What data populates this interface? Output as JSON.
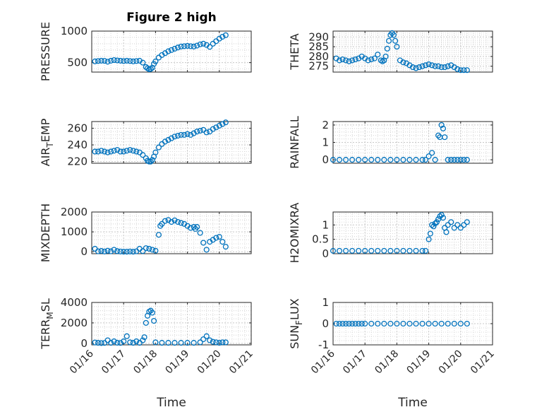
{
  "figure": {
    "title": "Figure 2 high",
    "xlabel": "Time",
    "x_tick_labels": [
      "01/16",
      "01/17",
      "01/18",
      "01/19",
      "01/20",
      "01/21"
    ],
    "marker_color": "#0072BD"
  },
  "chart_data": [
    {
      "type": "scatter",
      "name": "pressure",
      "title": "Figure 2 high",
      "ylabel": "PRESSURE",
      "ylim": [
        350,
        1000
      ],
      "yticks": [
        500,
        1000
      ],
      "xlim": [
        "01/16",
        "01/21"
      ],
      "grid": true,
      "x": [
        16.1,
        16.2,
        16.3,
        16.4,
        16.5,
        16.6,
        16.7,
        16.8,
        16.9,
        17.0,
        17.1,
        17.2,
        17.3,
        17.4,
        17.5,
        17.6,
        17.7,
        17.75,
        17.8,
        17.85,
        17.9,
        17.95,
        18.0,
        18.1,
        18.2,
        18.3,
        18.4,
        18.5,
        18.6,
        18.7,
        18.8,
        18.9,
        19.0,
        19.1,
        19.2,
        19.3,
        19.4,
        19.5,
        19.6,
        19.7,
        19.8,
        19.9,
        20.0,
        20.1,
        20.2
      ],
      "y": [
        520,
        525,
        530,
        528,
        515,
        530,
        540,
        535,
        530,
        525,
        530,
        525,
        520,
        525,
        530,
        500,
        430,
        410,
        395,
        400,
        420,
        480,
        520,
        580,
        620,
        650,
        680,
        700,
        720,
        740,
        755,
        760,
        765,
        760,
        755,
        770,
        790,
        800,
        780,
        750,
        800,
        840,
        880,
        910,
        935
      ]
    },
    {
      "type": "scatter",
      "name": "theta",
      "ylabel": "THETA",
      "ylim": [
        272,
        293
      ],
      "yticks": [
        275,
        280,
        285,
        290
      ],
      "xlim": [
        "01/16",
        "01/21"
      ],
      "grid": true,
      "x": [
        16.1,
        16.2,
        16.3,
        16.4,
        16.5,
        16.6,
        16.7,
        16.8,
        16.9,
        17.0,
        17.1,
        17.2,
        17.3,
        17.4,
        17.5,
        17.55,
        17.6,
        17.65,
        17.7,
        17.75,
        17.8,
        17.85,
        17.9,
        17.95,
        18.0,
        18.1,
        18.2,
        18.3,
        18.4,
        18.5,
        18.6,
        18.7,
        18.8,
        18.9,
        19.0,
        19.1,
        19.2,
        19.3,
        19.4,
        19.5,
        19.6,
        19.7,
        19.8,
        19.9,
        20.0,
        20.1,
        20.2
      ],
      "y": [
        279,
        278,
        278.5,
        278,
        277.5,
        278,
        278.5,
        279,
        280,
        279,
        278,
        278.5,
        279,
        281,
        278,
        277.5,
        278,
        280,
        284,
        288,
        291,
        292,
        291,
        288,
        285,
        278,
        277,
        276.5,
        275.5,
        274.5,
        274,
        274.5,
        275,
        275.5,
        276,
        275.5,
        275,
        275,
        274.5,
        274.5,
        275,
        275.5,
        274.5,
        273.5,
        273,
        273,
        273
      ]
    },
    {
      "type": "scatter",
      "name": "air_temp",
      "ylabel": "AIR_TEMP",
      "ylim": [
        218,
        268
      ],
      "yticks": [
        220,
        240,
        260
      ],
      "xlim": [
        "01/16",
        "01/21"
      ],
      "grid": true,
      "x": [
        16.1,
        16.2,
        16.3,
        16.4,
        16.5,
        16.6,
        16.7,
        16.8,
        16.9,
        17.0,
        17.1,
        17.2,
        17.3,
        17.4,
        17.5,
        17.6,
        17.7,
        17.75,
        17.8,
        17.85,
        17.9,
        17.95,
        18.0,
        18.1,
        18.2,
        18.3,
        18.4,
        18.5,
        18.6,
        18.7,
        18.8,
        18.9,
        19.0,
        19.1,
        19.2,
        19.3,
        19.4,
        19.5,
        19.6,
        19.7,
        19.8,
        19.9,
        20.0,
        20.1,
        20.2
      ],
      "y": [
        232,
        232,
        233,
        232,
        231,
        232,
        233,
        234,
        232,
        232,
        233,
        234,
        233,
        232,
        231,
        228,
        224,
        221,
        220,
        220,
        222,
        226,
        231,
        237,
        241,
        244,
        246,
        248,
        250,
        251,
        252,
        252,
        253,
        252,
        254,
        256,
        257,
        258,
        255,
        256,
        259,
        261,
        263,
        265,
        267
      ]
    },
    {
      "type": "scatter",
      "name": "rainfall",
      "ylabel": "RAINFALL",
      "ylim": [
        -0.2,
        2.2
      ],
      "yticks": [
        0,
        1,
        2
      ],
      "xlim": [
        "01/16",
        "01/21"
      ],
      "grid": true,
      "x": [
        16.0,
        16.2,
        16.4,
        16.6,
        16.8,
        17.0,
        17.2,
        17.4,
        17.6,
        17.8,
        18.0,
        18.2,
        18.4,
        18.6,
        18.8,
        18.9,
        19.0,
        19.1,
        19.2,
        19.3,
        19.35,
        19.4,
        19.45,
        19.5,
        19.6,
        19.7,
        19.8,
        19.9,
        20.0,
        20.1,
        20.2
      ],
      "y": [
        0,
        0,
        0,
        0,
        0,
        0,
        0,
        0,
        0,
        0,
        0,
        0,
        0,
        0,
        0,
        0,
        0.2,
        0.4,
        0,
        1.4,
        1.3,
        2.0,
        1.8,
        1.3,
        0,
        0,
        0,
        0,
        0,
        0,
        0
      ]
    },
    {
      "type": "scatter",
      "name": "mixdepth",
      "ylabel": "MIXDEPTH",
      "ylim": [
        -100,
        2000
      ],
      "yticks": [
        0,
        1000,
        2000
      ],
      "xlim": [
        "01/16",
        "01/21"
      ],
      "grid": true,
      "x": [
        16.1,
        16.2,
        16.3,
        16.4,
        16.5,
        16.6,
        16.7,
        16.8,
        16.9,
        17.0,
        17.1,
        17.2,
        17.3,
        17.4,
        17.5,
        17.6,
        17.7,
        17.8,
        17.9,
        18.0,
        18.1,
        18.15,
        18.2,
        18.3,
        18.4,
        18.5,
        18.6,
        18.7,
        18.8,
        18.9,
        19.0,
        19.1,
        19.2,
        19.25,
        19.3,
        19.4,
        19.5,
        19.6,
        19.7,
        19.8,
        19.9,
        20.0,
        20.1,
        20.2
      ],
      "y": [
        150,
        20,
        40,
        10,
        50,
        20,
        100,
        30,
        10,
        0,
        0,
        10,
        0,
        20,
        150,
        30,
        180,
        150,
        100,
        50,
        850,
        1300,
        1400,
        1550,
        1600,
        1500,
        1580,
        1500,
        1450,
        1400,
        1300,
        1200,
        1250,
        1150,
        1250,
        950,
        450,
        100,
        500,
        600,
        700,
        750,
        500,
        250
      ]
    },
    {
      "type": "scatter",
      "name": "h2omixra",
      "ylabel": "H2OMIXRA",
      "ylim": [
        0,
        1.45
      ],
      "yticks": [
        0,
        0.5,
        1
      ],
      "xlim": [
        "01/16",
        "01/21"
      ],
      "grid": true,
      "x": [
        16.0,
        16.2,
        16.4,
        16.6,
        16.8,
        17.0,
        17.2,
        17.4,
        17.6,
        17.8,
        18.0,
        18.2,
        18.4,
        18.6,
        18.8,
        18.9,
        19.0,
        19.05,
        19.1,
        19.15,
        19.2,
        19.25,
        19.3,
        19.35,
        19.4,
        19.45,
        19.5,
        19.55,
        19.6,
        19.7,
        19.8,
        19.9,
        20.0,
        20.1,
        20.2
      ],
      "y": [
        0.1,
        0.1,
        0.1,
        0.1,
        0.1,
        0.1,
        0.1,
        0.1,
        0.1,
        0.1,
        0.1,
        0.1,
        0.1,
        0.1,
        0.1,
        0.1,
        0.5,
        0.7,
        1.0,
        0.95,
        1.05,
        1.1,
        1.2,
        1.3,
        1.35,
        1.25,
        0.9,
        0.75,
        1.0,
        1.1,
        0.9,
        1.0,
        0.9,
        1.0,
        1.1
      ]
    },
    {
      "type": "scatter",
      "name": "terr_msl",
      "ylabel": "TERR_MSL",
      "ylim": [
        -150,
        4000
      ],
      "yticks": [
        0,
        2000,
        4000
      ],
      "xlim": [
        "01/16",
        "01/21"
      ],
      "grid": true,
      "x": [
        16.1,
        16.2,
        16.3,
        16.4,
        16.5,
        16.6,
        16.7,
        16.8,
        16.9,
        17.0,
        17.1,
        17.2,
        17.3,
        17.4,
        17.5,
        17.6,
        17.65,
        17.7,
        17.75,
        17.8,
        17.85,
        17.9,
        17.95,
        18.0,
        18.2,
        18.4,
        18.6,
        18.8,
        19.0,
        19.2,
        19.4,
        19.5,
        19.6,
        19.7,
        19.8,
        19.9,
        20.0,
        20.1,
        20.2
      ],
      "y": [
        80,
        50,
        30,
        40,
        300,
        50,
        200,
        60,
        40,
        200,
        700,
        100,
        50,
        200,
        50,
        300,
        600,
        2000,
        2700,
        3100,
        3200,
        3000,
        2200,
        100,
        50,
        50,
        50,
        50,
        50,
        50,
        100,
        400,
        700,
        300,
        150,
        100,
        50,
        100,
        100
      ]
    },
    {
      "type": "scatter",
      "name": "sun_flux",
      "ylabel": "SUN_FLUX",
      "ylim": [
        -1,
        1
      ],
      "yticks": [
        -1,
        0,
        1
      ],
      "xlim": [
        "01/16",
        "01/21"
      ],
      "grid": true,
      "x": [
        16.1,
        16.2,
        16.3,
        16.4,
        16.5,
        16.6,
        16.7,
        16.8,
        16.9,
        17.0,
        17.2,
        17.4,
        17.6,
        17.8,
        18.0,
        18.2,
        18.4,
        18.6,
        18.8,
        19.0,
        19.2,
        19.4,
        19.6,
        19.8,
        20.0,
        20.2
      ],
      "y": [
        0,
        0,
        0,
        0,
        0,
        0,
        0,
        0,
        0,
        0,
        0,
        0,
        0,
        0,
        0,
        0,
        0,
        0,
        0,
        0,
        0,
        0,
        0,
        0,
        0,
        0
      ]
    }
  ]
}
